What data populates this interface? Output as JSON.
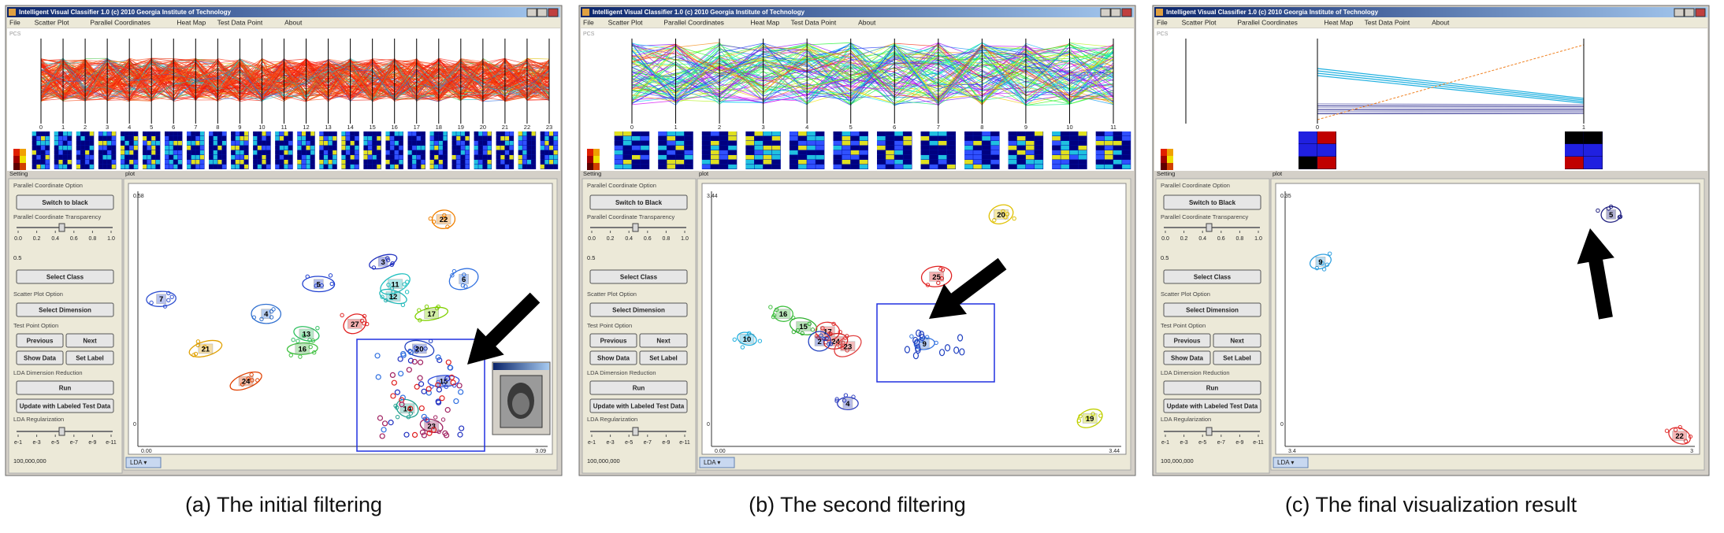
{
  "panels": [
    {
      "window_title": "Intelligent Visual Classifier 1.0 (c) 2010 Georgia Institute of Technology",
      "menu": [
        "File",
        "Scatter Plot",
        "Parallel Coordinates",
        "Heat Map",
        "Test Data Point",
        "About"
      ],
      "pc_label": "PCS",
      "pc_axes": [
        "0",
        "1",
        "2",
        "3",
        "4",
        "5",
        "6",
        "7",
        "8",
        "9",
        "10",
        "11",
        "12",
        "13",
        "14",
        "15",
        "16",
        "17",
        "18",
        "19",
        "20",
        "21",
        "22",
        "23"
      ],
      "settings": {
        "title": "Setting",
        "pc_option": "Parallel Coordinate Option",
        "switch_button": "Switch to black",
        "transparency": "Parallel Coordinate Transparency",
        "transparency_ticks": [
          "0.0",
          "0.2",
          "0.4",
          "0.6",
          "0.8",
          "1.0"
        ],
        "transparency_value": "0.5",
        "select_class": "Select Class",
        "scatter_option": "Scatter Plot Option",
        "select_dimension": "Select Dimension",
        "test_option": "Test Point Option",
        "previous": "Previous",
        "next": "Next",
        "show_data": "Show Data",
        "set_label": "Set Label",
        "lda_option": "LDA Dimension Reduction",
        "run": "Run",
        "update": "Update with Labeled Test Data",
        "regularization": "LDA Regularization",
        "regularization_ticks": [
          "e-1",
          "e-3",
          "e-5",
          "e-7",
          "e-9",
          "e-11"
        ],
        "regularization_value": "100,000,000"
      },
      "plot": {
        "title": "plot",
        "method": "LDA ▾",
        "axis_labels": [
          "0.58",
          "0",
          "0.00",
          "3.09"
        ],
        "clusters": [
          {
            "label": "22",
            "color": "#f08000"
          },
          {
            "label": "3",
            "color": "#2030c0"
          },
          {
            "label": "5",
            "color": "#2040d0"
          },
          {
            "label": "11",
            "color": "#20c0c0"
          },
          {
            "label": "12",
            "color": "#20b8b8"
          },
          {
            "label": "6",
            "color": "#3070e0"
          },
          {
            "label": "7",
            "color": "#3050d0"
          },
          {
            "label": "4",
            "color": "#3070d0"
          },
          {
            "label": "17",
            "color": "#80d000"
          },
          {
            "label": "13",
            "color": "#30c060"
          },
          {
            "label": "27",
            "color": "#e02020"
          },
          {
            "label": "16",
            "color": "#40c040"
          },
          {
            "label": "21",
            "color": "#e0a000"
          },
          {
            "label": "20",
            "color": "#2040c0"
          },
          {
            "label": "15",
            "color": "#3050e0"
          },
          {
            "label": "24",
            "color": "#e04000"
          },
          {
            "label": "14",
            "color": "#20a090"
          },
          {
            "label": "23",
            "color": "#a02060"
          }
        ]
      },
      "caption": "(a) The initial filtering"
    },
    {
      "window_title": "Intelligent Visual Classifier 1.0 (c) 2010 Georgia Institute of Technology",
      "menu": [
        "File",
        "Scatter Plot",
        "Parallel Coordinates",
        "Heat Map",
        "Test Data Point",
        "About"
      ],
      "pc_label": "PCS",
      "pc_axes": [
        "0",
        "1",
        "2",
        "3",
        "4",
        "5",
        "6",
        "7",
        "8",
        "9",
        "10",
        "11"
      ],
      "settings": {
        "title": "Setting",
        "pc_option": "Parallel Coordinate Option",
        "switch_button": "Switch to Black",
        "transparency": "Parallel Coordinate Transparency",
        "transparency_ticks": [
          "0.0",
          "0.2",
          "0.4",
          "0.6",
          "0.8",
          "1.0"
        ],
        "transparency_value": "0.5",
        "select_class": "Select Class",
        "scatter_option": "Scatter Plot Option",
        "select_dimension": "Select Dimension",
        "test_option": "Test Point Option",
        "previous": "Previous",
        "next": "Next",
        "show_data": "Show Data",
        "set_label": "Set Label",
        "lda_option": "LDA Dimension Reduction",
        "run": "Run",
        "update": "Update with Labeled Test Data",
        "regularization": "LDA Regularization",
        "regularization_ticks": [
          "e-1",
          "e-3",
          "e-5",
          "e-7",
          "e-9",
          "e-11"
        ],
        "regularization_value": "100,000,000"
      },
      "plot": {
        "title": "plot",
        "method": "LDA ▾",
        "axis_labels": [
          "3.44",
          "0",
          "0.00",
          "3.44"
        ],
        "clusters": [
          {
            "label": "20",
            "color": "#e0c000"
          },
          {
            "label": "25",
            "color": "#e02020"
          },
          {
            "label": "16",
            "color": "#40c040"
          },
          {
            "label": "15",
            "color": "#30b030"
          },
          {
            "label": "10",
            "color": "#20b0e0"
          },
          {
            "label": "17",
            "color": "#e03030"
          },
          {
            "label": "24",
            "color": "#d02020"
          },
          {
            "label": "2",
            "color": "#2040c0"
          },
          {
            "label": "23",
            "color": "#e04040"
          },
          {
            "label": "9",
            "color": "#3070e0"
          },
          {
            "label": "4",
            "color": "#3040c0"
          },
          {
            "label": "19",
            "color": "#c0d000"
          }
        ]
      },
      "caption": "(b) The second filtering"
    },
    {
      "window_title": "Intelligent Visual Classifier 1.0 (c) 2010 Georgia Institute of Technology",
      "menu": [
        "File",
        "Scatter Plot",
        "Parallel Coordinates",
        "Heat Map",
        "Test Data Point",
        "About"
      ],
      "pc_label": "PCS",
      "pc_axes": [
        "0",
        "1"
      ],
      "settings": {
        "title": "Setting",
        "pc_option": "Parallel Coordinate Option",
        "switch_button": "Switch to Black",
        "transparency": "Parallel Coordinate Transparency",
        "transparency_ticks": [
          "0.0",
          "0.2",
          "0.4",
          "0.6",
          "0.8",
          "1.0"
        ],
        "transparency_value": "0.5",
        "select_class": "Select Class",
        "scatter_option": "Scatter Plot Option",
        "select_dimension": "Select Dimension",
        "test_option": "Test Point Option",
        "previous": "Previous",
        "next": "Next",
        "show_data": "Show Data",
        "set_label": "Set Label",
        "lda_option": "LDA Dimension Reduction",
        "run": "Run",
        "update": "Update with Labeled Test Data",
        "regularization": "LDA Regularization",
        "regularization_ticks": [
          "e-1",
          "e-3",
          "e-5",
          "e-7",
          "e-9",
          "e-11"
        ],
        "regularization_value": "100,000,000"
      },
      "plot": {
        "title": "plot",
        "method": "LDA ▾",
        "axis_labels": [
          "0.35",
          "0",
          "3.4",
          "3"
        ],
        "clusters": [
          {
            "label": "5",
            "color": "#202080"
          },
          {
            "label": "9",
            "color": "#30a0e0"
          },
          {
            "label": "22",
            "color": "#e03030"
          }
        ]
      },
      "caption": "(c) The final visualization result"
    }
  ]
}
